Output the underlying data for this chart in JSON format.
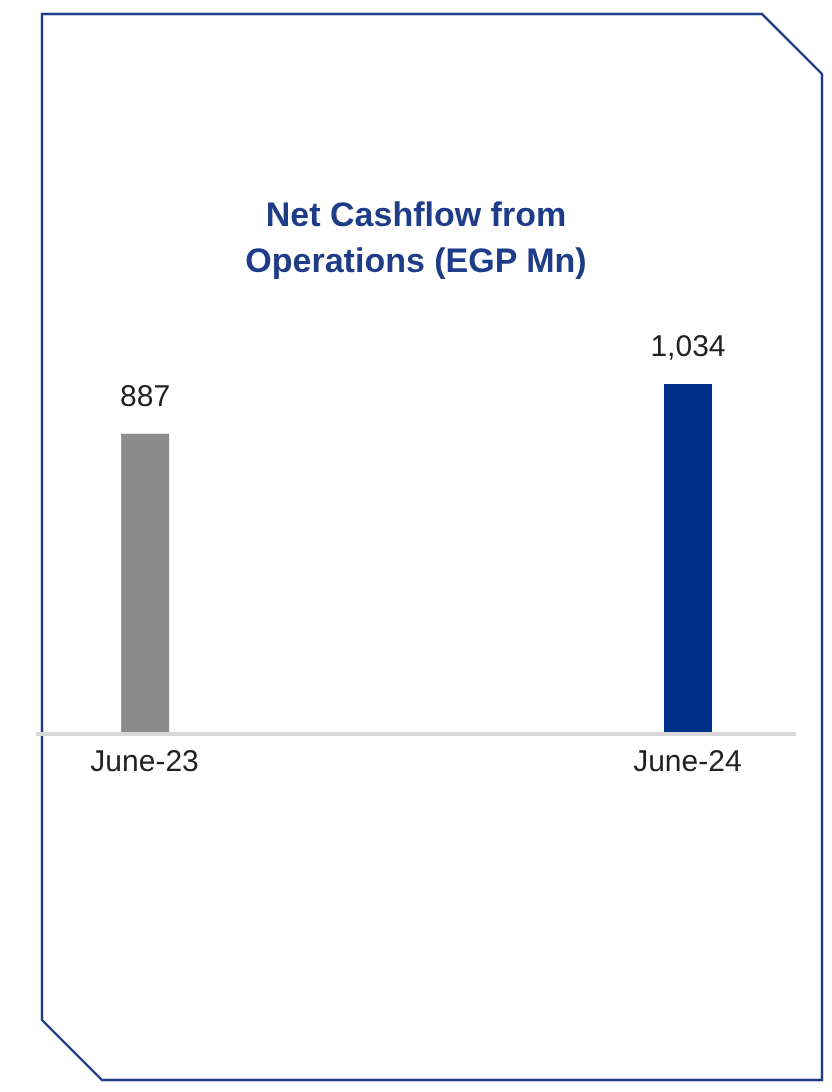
{
  "chart_data": {
    "type": "bar",
    "title": "Net Cashflow from Operations (EGP Mn)",
    "categories": [
      "June-23",
      "June-24"
    ],
    "values": [
      887,
      1034
    ],
    "colors": [
      "#8c8c8c",
      "#003087"
    ],
    "data_labels": true,
    "value_labels": [
      "887",
      "1,034"
    ],
    "grid": false,
    "legend": false
  }
}
